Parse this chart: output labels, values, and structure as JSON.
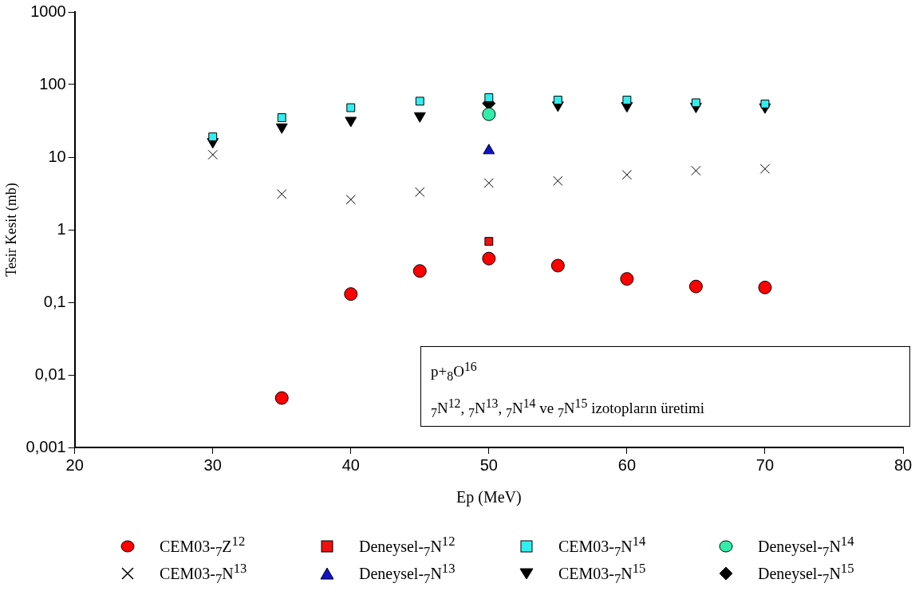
{
  "chart_data": {
    "type": "scatter",
    "xlabel": "Ep (MeV)",
    "ylabel": "Tesir Kesit (mb)",
    "log": "y",
    "legend": "bottom",
    "xlim": [
      20,
      80
    ],
    "xticks": [
      20,
      30,
      40,
      50,
      60,
      70,
      80
    ],
    "ylim": [
      0.001,
      1000
    ],
    "yticks": [
      {
        "value": 0.001,
        "label": "0,001"
      },
      {
        "value": 0.01,
        "label": "0,01"
      },
      {
        "value": 0.1,
        "label": "0,1"
      },
      1,
      10,
      100,
      1000
    ],
    "annotations": [
      "p+$_{8}$O$^{16}$",
      "$_{7}$N$^{12}$, $_{7}$N$^{13}$, $_{7}$N$^{14}$ ve $_{7}$N$^{15}$ izotopların üretimi"
    ],
    "series": [
      {
        "name": "CEM03-$_{7}$Z$^{12}$",
        "color": "#ff0000",
        "marker": "circle",
        "x": [
          35,
          40,
          45,
          50,
          55,
          60,
          65,
          70
        ],
        "values": [
          0.0048,
          0.13,
          0.27,
          0.4,
          0.32,
          0.21,
          0.165,
          0.16
        ]
      },
      {
        "name": "Deneysel-$_{7}$N$^{12}$",
        "color": "#ee1111",
        "marker": "square",
        "x": [
          50
        ],
        "values": [
          0.69
        ]
      },
      {
        "name": "CEM03-$_{7}$N$^{14}$",
        "color": "#33eeee",
        "marker": "square",
        "x": [
          30,
          35,
          40,
          45,
          50,
          55,
          60,
          65,
          70
        ],
        "values": [
          19,
          35,
          48,
          59,
          66,
          61,
          61,
          56,
          54
        ]
      },
      {
        "name": "Deneysel-$_{7}$N$^{14}$",
        "color": "#33eeaa",
        "marker": "circle",
        "x": [
          50
        ],
        "values": [
          39
        ]
      },
      {
        "name": "CEM03-$_{7}$N$^{13}$",
        "color": "#000000",
        "marker": "cross",
        "x": [
          30,
          35,
          40,
          45,
          50,
          55,
          60,
          65,
          70
        ],
        "values": [
          10.8,
          3.1,
          2.6,
          3.3,
          4.4,
          4.7,
          5.7,
          6.5,
          6.9
        ]
      },
      {
        "name": "Deneysel-$_{7}$N$^{13}$",
        "color": "#1111cc",
        "marker": "triangle",
        "x": [
          50
        ],
        "values": [
          12.3
        ]
      },
      {
        "name": "CEM03-$_{7}$N$^{15}$",
        "color": "#000000",
        "marker": "triangle-down",
        "x": [
          30,
          35,
          40,
          45,
          50,
          55,
          60,
          65,
          70
        ],
        "values": [
          16.3,
          26,
          32,
          37,
          null,
          52,
          51,
          50,
          49
        ]
      },
      {
        "name": "Deneysel-$_{7}$N$^{15}$",
        "color": "#000000",
        "marker": "diamond",
        "x": [
          50
        ],
        "values": [
          55
        ]
      }
    ]
  }
}
